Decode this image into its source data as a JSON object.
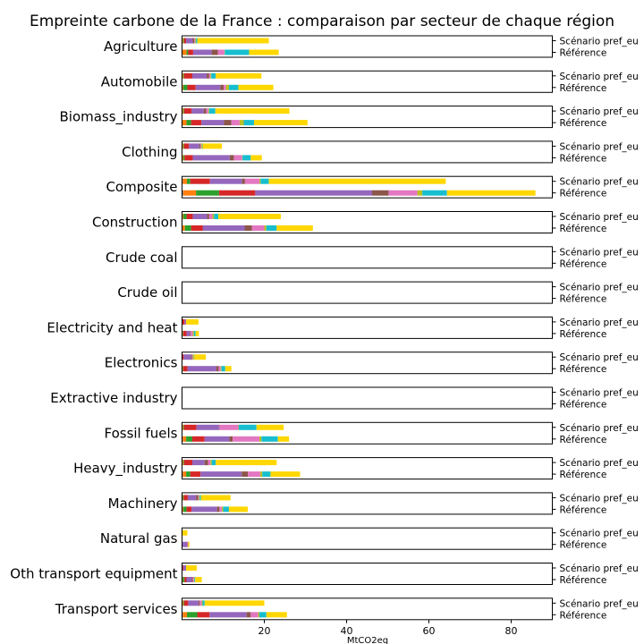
{
  "chart_data": {
    "type": "bar",
    "orientation": "horizontal",
    "stacked": true,
    "title": "Empreinte carbone de la France : comparaison par secteur de chaque région",
    "xlabel": "MtCO2eq",
    "xlim": [
      0,
      90
    ],
    "xticks": [
      20,
      40,
      60,
      80
    ],
    "scenarios": [
      "Scénario pref_eu",
      "Référence"
    ],
    "region_colors": [
      "#7f7f7f",
      "#ff7f0e",
      "#2ca02c",
      "#d62728",
      "#9467bd",
      "#8c564b",
      "#e377c2",
      "#bcbd22",
      "#17becf",
      "#ffd700"
    ],
    "categories": [
      {
        "name": "Agriculture",
        "pref_eu": [
          0.1,
          0.2,
          0.2,
          0.5,
          1.6,
          0.4,
          0.2,
          0.2,
          0.3,
          17.4
        ],
        "reference": [
          0.1,
          1,
          0.4,
          1.2,
          4.5,
          1.5,
          1.6,
          0.1,
          5.9,
          7.2
        ]
      },
      {
        "name": "Automobile",
        "pref_eu": [
          0.1,
          0.2,
          0.2,
          2,
          3.5,
          0.6,
          0.3,
          0.2,
          1.1,
          11.1
        ],
        "reference": [
          0.1,
          0.2,
          1,
          2,
          6,
          0.8,
          0.6,
          0.7,
          2.3,
          8.5
        ]
      },
      {
        "name": "Biomass_industry",
        "pref_eu": [
          0.1,
          0.2,
          0.2,
          1.8,
          3,
          0.6,
          0.5,
          0.2,
          1.5,
          18
        ],
        "reference": [
          0.1,
          1,
          1.1,
          2.5,
          5.5,
          1.8,
          2,
          1,
          2.5,
          13
        ]
      },
      {
        "name": "Clothing",
        "pref_eu": [
          0.1,
          0.2,
          0.2,
          1.2,
          2.5,
          0.3,
          0.2,
          0.2,
          0.1,
          4.7
        ],
        "reference": [
          0.1,
          0.2,
          0.3,
          2,
          9,
          1,
          2,
          0.1,
          2,
          2.7
        ]
      },
      {
        "name": "Composite",
        "pref_eu": [
          0.2,
          1,
          0.8,
          4.8,
          7.8,
          0.7,
          3.5,
          0.3,
          2,
          43
        ],
        "reference": [
          0.3,
          3.1,
          5.6,
          8.8,
          28.4,
          4,
          7,
          1.2,
          6,
          21.5
        ]
      },
      {
        "name": "Construction",
        "pref_eu": [
          0.1,
          0.2,
          0.8,
          1.5,
          3.5,
          0.5,
          0.8,
          0.4,
          1,
          15.2
        ],
        "reference": [
          0.1,
          0.6,
          1.5,
          2.8,
          10.2,
          1.8,
          3,
          0.5,
          2.5,
          8.8
        ]
      },
      {
        "name": "Crude coal",
        "pref_eu": [
          0,
          0,
          0,
          0,
          0,
          0,
          0,
          0,
          0,
          0
        ],
        "reference": [
          0,
          0,
          0,
          0,
          0,
          0,
          0,
          0,
          0,
          0
        ]
      },
      {
        "name": "Crude oil",
        "pref_eu": [
          0,
          0,
          0,
          0,
          0,
          0,
          0,
          0,
          0,
          0
        ],
        "reference": [
          0,
          0,
          0,
          0,
          0,
          0,
          0,
          0,
          0,
          0
        ]
      },
      {
        "name": "Electricity and heat",
        "pref_eu": [
          0,
          0,
          0.1,
          0.5,
          0.4,
          0,
          0,
          0,
          0,
          3
        ],
        "reference": [
          0.1,
          0.1,
          0.1,
          0.8,
          0.8,
          0.2,
          0.5,
          0.3,
          0.4,
          0.8
        ]
      },
      {
        "name": "Electronics",
        "pref_eu": [
          0,
          0,
          0.1,
          0.3,
          1.8,
          0.2,
          0.2,
          0.3,
          0.1,
          2.8
        ],
        "reference": [
          0.1,
          0.1,
          0.1,
          1,
          7,
          0.6,
          0.5,
          0.2,
          0.9,
          1.5
        ]
      },
      {
        "name": "Extractive industry",
        "pref_eu": [
          0,
          0,
          0,
          0,
          0,
          0,
          0,
          0,
          0,
          0
        ],
        "reference": [
          0,
          0,
          0,
          0,
          0,
          0,
          0,
          0,
          0,
          0
        ]
      },
      {
        "name": "Fossil fuels",
        "pref_eu": [
          0.1,
          0.2,
          0.2,
          3,
          5.5,
          0.1,
          4.6,
          0.1,
          4.3,
          6.6
        ],
        "reference": [
          0.2,
          0.8,
          1.5,
          3,
          6,
          0.8,
          6.5,
          0.5,
          4,
          2.7
        ]
      },
      {
        "name": "Heavy_industry",
        "pref_eu": [
          0.1,
          0.2,
          0.2,
          2,
          3,
          0.8,
          0.6,
          0.3,
          1,
          14.8
        ],
        "reference": [
          0.2,
          0.8,
          1,
          2.5,
          10,
          1.5,
          3,
          0.5,
          2,
          7.2
        ]
      },
      {
        "name": "Machinery",
        "pref_eu": [
          0.1,
          0.1,
          0.2,
          1,
          2,
          0.5,
          0.2,
          0.2,
          0.3,
          7.2
        ],
        "reference": [
          0.1,
          0.2,
          0.8,
          1.2,
          6.2,
          0.6,
          0.6,
          0.3,
          1.4,
          4.6
        ]
      },
      {
        "name": "Natural gas",
        "pref_eu": [
          0,
          0,
          0,
          0,
          0,
          0,
          0,
          0,
          0,
          1.3
        ],
        "reference": [
          0.1,
          0,
          0,
          0,
          1.1,
          0.1,
          0.2,
          0,
          0,
          0.3
        ]
      },
      {
        "name": "Oth transport equipment",
        "pref_eu": [
          0,
          0,
          0.1,
          0.2,
          0.7,
          0,
          0,
          0,
          0,
          2.6
        ],
        "reference": [
          0.1,
          0.1,
          0.4,
          0.5,
          1.3,
          0.2,
          0.3,
          0.1,
          0.2,
          1.6
        ]
      },
      {
        "name": "Transport services",
        "pref_eu": [
          0.1,
          0.2,
          0.2,
          1,
          2.5,
          0.3,
          0.5,
          0.2,
          0.5,
          14.5
        ],
        "reference": [
          0.2,
          1,
          2.5,
          3,
          9,
          1,
          1.8,
          0.3,
          1.7,
          5
        ]
      }
    ]
  }
}
